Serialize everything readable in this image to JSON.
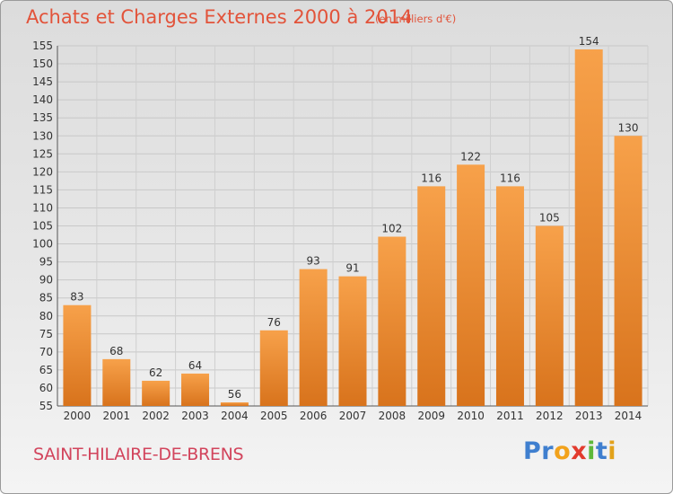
{
  "title": "Achats et Charges Externes 2000 à 2014",
  "subtitle": "(en milliers d'€)",
  "commune": "SAINT-HILAIRE-DE-BRENS",
  "logo": {
    "letters": [
      "P",
      "r",
      "o",
      "x",
      "i",
      "t",
      "i"
    ],
    "colors": [
      "#3f7fcf",
      "#3f7fcf",
      "#f2a21b",
      "#e23b2e",
      "#5db83a",
      "#3f7fcf",
      "#e2a21b"
    ]
  },
  "colors": {
    "bar_top": "#f7a14a",
    "bar_bottom": "#d8731c",
    "title": "#e2533a",
    "commune": "#d2445c"
  },
  "chart_data": {
    "type": "bar",
    "title": "Achats et Charges Externes 2000 à 2014",
    "subtitle": "(en milliers d'€)",
    "categories": [
      "2000",
      "2001",
      "2002",
      "2003",
      "2004",
      "2005",
      "2006",
      "2007",
      "2008",
      "2009",
      "2010",
      "2011",
      "2012",
      "2013",
      "2014"
    ],
    "values": [
      83,
      68,
      62,
      64,
      56,
      76,
      93,
      91,
      102,
      116,
      122,
      116,
      105,
      154,
      130
    ],
    "ylim": [
      55,
      155
    ],
    "yticks": [
      55,
      60,
      65,
      70,
      75,
      80,
      85,
      90,
      95,
      100,
      105,
      110,
      115,
      120,
      125,
      130,
      135,
      140,
      145,
      150,
      155
    ],
    "grid": true,
    "xlabel": "",
    "ylabel": ""
  }
}
